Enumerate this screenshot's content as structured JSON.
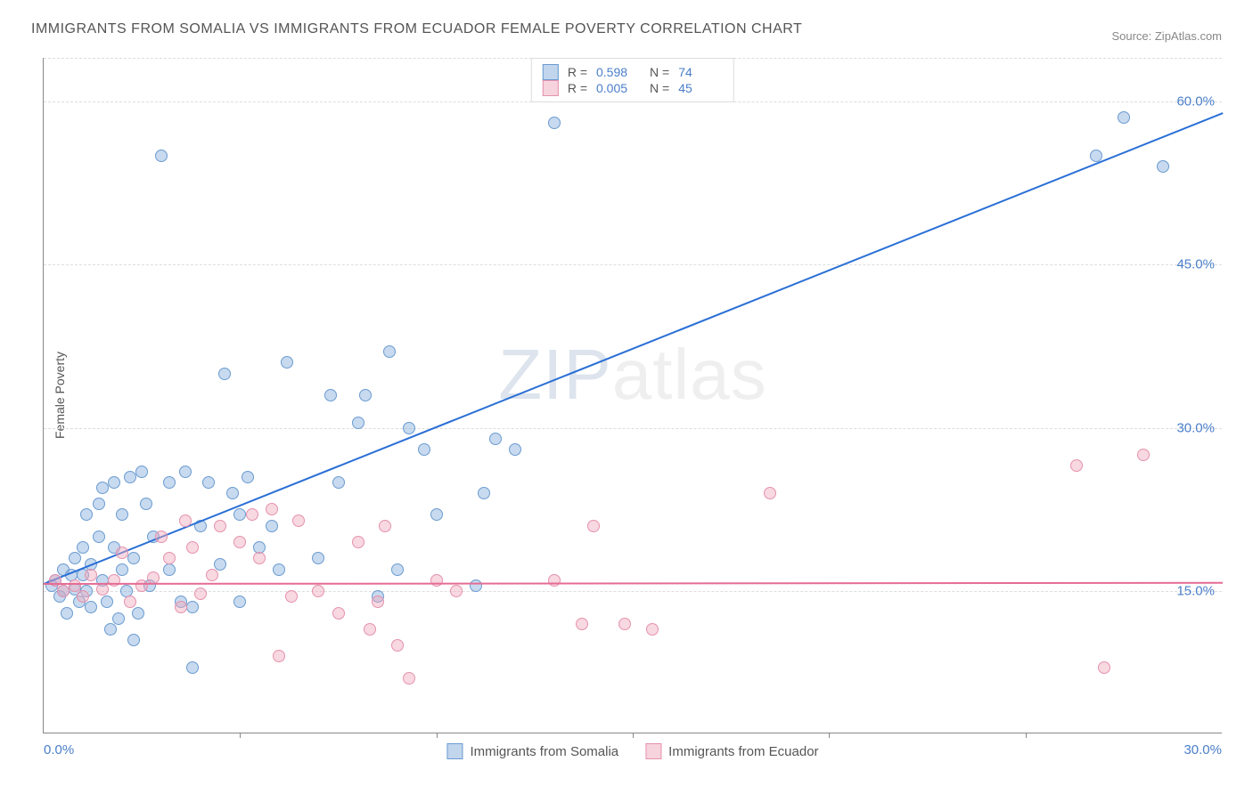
{
  "chart": {
    "title": "IMMIGRANTS FROM SOMALIA VS IMMIGRANTS FROM ECUADOR FEMALE POVERTY CORRELATION CHART",
    "source": "Source: ZipAtlas.com",
    "y_axis_label": "Female Poverty",
    "watermark_zip": "ZIP",
    "watermark_rest": "atlas",
    "x_range": [
      0,
      30
    ],
    "y_range": [
      2,
      64
    ],
    "x_ticks": [
      {
        "pos": 0,
        "label": "0.0%"
      },
      {
        "pos": 30,
        "label": "30.0%"
      }
    ],
    "x_minor_ticks": [
      5,
      10,
      15,
      20,
      25
    ],
    "y_ticks": [
      {
        "pos": 15,
        "label": "15.0%"
      },
      {
        "pos": 30,
        "label": "30.0%"
      },
      {
        "pos": 45,
        "label": "45.0%"
      },
      {
        "pos": 60,
        "label": "60.0%"
      }
    ],
    "series": [
      {
        "name": "Immigrants from Somalia",
        "color_class": "blue",
        "r_value": "0.598",
        "n_value": "74",
        "trend": {
          "x1": 0,
          "y1": 15.8,
          "x2": 30,
          "y2": 59
        },
        "points": [
          [
            0.2,
            15.5
          ],
          [
            0.3,
            16
          ],
          [
            0.4,
            14.5
          ],
          [
            0.5,
            17
          ],
          [
            0.5,
            15
          ],
          [
            0.6,
            13
          ],
          [
            0.7,
            16.5
          ],
          [
            0.8,
            15.2
          ],
          [
            0.8,
            18
          ],
          [
            0.9,
            14
          ],
          [
            1,
            19
          ],
          [
            1,
            16.5
          ],
          [
            1.1,
            15
          ],
          [
            1.1,
            22
          ],
          [
            1.2,
            13.5
          ],
          [
            1.2,
            17.5
          ],
          [
            1.4,
            20
          ],
          [
            1.4,
            23
          ],
          [
            1.5,
            16
          ],
          [
            1.5,
            24.5
          ],
          [
            1.6,
            14
          ],
          [
            1.7,
            11.5
          ],
          [
            1.8,
            19
          ],
          [
            1.8,
            25
          ],
          [
            1.9,
            12.5
          ],
          [
            2,
            22
          ],
          [
            2,
            17
          ],
          [
            2.1,
            15
          ],
          [
            2.2,
            25.5
          ],
          [
            2.3,
            10.5
          ],
          [
            2.3,
            18
          ],
          [
            2.4,
            13
          ],
          [
            2.5,
            26
          ],
          [
            2.6,
            23
          ],
          [
            2.7,
            15.5
          ],
          [
            2.8,
            20
          ],
          [
            3,
            55
          ],
          [
            3.2,
            17
          ],
          [
            3.2,
            25
          ],
          [
            3.5,
            14
          ],
          [
            3.6,
            26
          ],
          [
            3.8,
            13.5
          ],
          [
            3.8,
            8
          ],
          [
            4,
            21
          ],
          [
            4.2,
            25
          ],
          [
            4.5,
            17.5
          ],
          [
            4.6,
            35
          ],
          [
            4.8,
            24
          ],
          [
            5,
            22
          ],
          [
            5,
            14
          ],
          [
            5.2,
            25.5
          ],
          [
            5.5,
            19
          ],
          [
            5.8,
            21
          ],
          [
            6,
            17
          ],
          [
            6.2,
            36
          ],
          [
            7,
            18
          ],
          [
            7.3,
            33
          ],
          [
            7.5,
            25
          ],
          [
            8,
            30.5
          ],
          [
            8.2,
            33
          ],
          [
            8.5,
            14.5
          ],
          [
            8.8,
            37
          ],
          [
            9,
            17
          ],
          [
            9.3,
            30
          ],
          [
            9.7,
            28
          ],
          [
            10,
            22
          ],
          [
            11,
            15.5
          ],
          [
            11.2,
            24
          ],
          [
            11.5,
            29
          ],
          [
            12,
            28
          ],
          [
            13,
            58
          ],
          [
            26.8,
            55
          ],
          [
            28.5,
            54
          ],
          [
            27.5,
            58.5
          ]
        ]
      },
      {
        "name": "Immigrants from Ecuador",
        "color_class": "pink",
        "r_value": "0.005",
        "n_value": "45",
        "trend": {
          "x1": 0,
          "y1": 15.8,
          "x2": 30,
          "y2": 15.9
        },
        "points": [
          [
            0.3,
            16
          ],
          [
            0.5,
            15
          ],
          [
            0.8,
            15.5
          ],
          [
            1,
            14.5
          ],
          [
            1.2,
            16.5
          ],
          [
            1.5,
            15.2
          ],
          [
            1.8,
            16
          ],
          [
            2,
            18.5
          ],
          [
            2.2,
            14
          ],
          [
            2.5,
            15.5
          ],
          [
            2.8,
            16.2
          ],
          [
            3,
            20
          ],
          [
            3.2,
            18
          ],
          [
            3.5,
            13.5
          ],
          [
            3.6,
            21.5
          ],
          [
            3.8,
            19
          ],
          [
            4,
            14.8
          ],
          [
            4.3,
            16.5
          ],
          [
            4.5,
            21
          ],
          [
            5,
            19.5
          ],
          [
            5.3,
            22
          ],
          [
            5.5,
            18
          ],
          [
            5.8,
            22.5
          ],
          [
            6,
            9
          ],
          [
            6.3,
            14.5
          ],
          [
            6.5,
            21.5
          ],
          [
            7,
            15
          ],
          [
            7.5,
            13
          ],
          [
            8,
            19.5
          ],
          [
            8.3,
            11.5
          ],
          [
            8.5,
            14
          ],
          [
            8.7,
            21
          ],
          [
            9,
            10
          ],
          [
            9.3,
            7
          ],
          [
            10,
            16
          ],
          [
            10.5,
            15
          ],
          [
            13,
            16
          ],
          [
            13.7,
            12
          ],
          [
            14,
            21
          ],
          [
            14.8,
            12
          ],
          [
            15.5,
            11.5
          ],
          [
            18.5,
            24
          ],
          [
            27,
            8
          ],
          [
            26.3,
            26.5
          ],
          [
            28,
            27.5
          ]
        ]
      }
    ],
    "legend_items": [
      {
        "label": "Immigrants from Somalia",
        "color_class": "blue"
      },
      {
        "label": "Immigrants from Ecuador",
        "color_class": "pink"
      }
    ]
  }
}
